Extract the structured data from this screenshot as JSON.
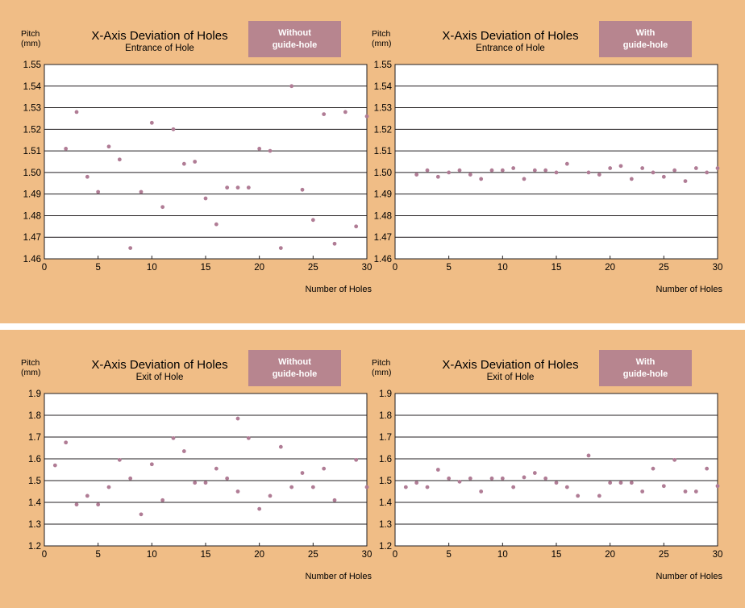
{
  "colors": {
    "panel_bg": "#f0bd86",
    "plot_bg": "#ffffff",
    "grid": "#231f20",
    "marker": "#b07c95",
    "badge_bg": "#b7858f",
    "badge_text": "#ffffff"
  },
  "chart_data": [
    {
      "type": "scatter",
      "title": "X-Axis Deviation of Holes",
      "subtitle": "Entrance of Hole",
      "badge": [
        "Without",
        "guide-hole"
      ],
      "ylabel": [
        "Pitch",
        "(mm)"
      ],
      "xlabel": "Number of Holes",
      "xlim": [
        0,
        30
      ],
      "ylim": [
        1.46,
        1.55
      ],
      "xticks": [
        "0",
        "5",
        "10",
        "15",
        "20",
        "25",
        "30"
      ],
      "yticks": [
        "1.55",
        "1.54",
        "1.53",
        "1.52",
        "1.51",
        "1.50",
        "1.49",
        "1.48",
        "1.47",
        "1.46"
      ],
      "grid": "horizontal",
      "x": [
        2,
        3,
        4,
        5,
        6,
        7,
        8,
        9,
        10,
        11,
        12,
        13,
        14,
        15,
        16,
        17,
        18,
        19,
        20,
        21,
        22,
        23,
        24,
        25,
        26,
        27,
        28,
        29,
        30
      ],
      "y": [
        1.511,
        1.528,
        1.498,
        1.491,
        1.512,
        1.506,
        1.465,
        1.491,
        1.523,
        1.484,
        1.52,
        1.504,
        1.505,
        1.488,
        1.476,
        1.493,
        1.493,
        1.493,
        1.511,
        1.51,
        1.465,
        1.54,
        1.492,
        1.478,
        1.527,
        1.467,
        1.528,
        1.475,
        1.526
      ]
    },
    {
      "type": "scatter",
      "title": "X-Axis Deviation of Holes",
      "subtitle": "Entrance of Hole",
      "badge": [
        "With",
        "guide-hole"
      ],
      "ylabel": [
        "Pitch",
        "(mm)"
      ],
      "xlabel": "Number of Holes",
      "xlim": [
        0,
        30
      ],
      "ylim": [
        1.46,
        1.55
      ],
      "xticks": [
        "0",
        "5",
        "10",
        "15",
        "20",
        "25",
        "30"
      ],
      "yticks": [
        "1.55",
        "1.54",
        "1.53",
        "1.52",
        "1.51",
        "1.50",
        "1.49",
        "1.48",
        "1.47",
        "1.46"
      ],
      "grid": "horizontal",
      "x": [
        2,
        3,
        4,
        5,
        6,
        7,
        8,
        9,
        10,
        11,
        12,
        13,
        14,
        15,
        16,
        18,
        19,
        20,
        21,
        22,
        23,
        24,
        25,
        26,
        27,
        28,
        29,
        30
      ],
      "y": [
        1.499,
        1.501,
        1.498,
        1.5,
        1.501,
        1.499,
        1.497,
        1.501,
        1.501,
        1.502,
        1.497,
        1.501,
        1.501,
        1.5,
        1.504,
        1.5,
        1.499,
        1.502,
        1.503,
        1.497,
        1.502,
        1.5,
        1.498,
        1.501,
        1.496,
        1.502,
        1.5,
        1.502
      ]
    },
    {
      "type": "scatter",
      "title": "X-Axis Deviation of Holes",
      "subtitle": "Exit of Hole",
      "badge": [
        "Without",
        "guide-hole"
      ],
      "ylabel": [
        "Pitch",
        "(mm)"
      ],
      "xlabel": "Number of Holes",
      "xlim": [
        0,
        30
      ],
      "ylim": [
        1.2,
        1.9
      ],
      "xticks": [
        "0",
        "5",
        "10",
        "15",
        "20",
        "25",
        "30"
      ],
      "yticks": [
        "1.9",
        "1.8",
        "1.7",
        "1.6",
        "1.5",
        "1.4",
        "1.3",
        "1.2"
      ],
      "grid": "horizontal",
      "x": [
        1,
        2,
        3,
        4,
        5,
        6,
        7,
        8,
        9,
        10,
        11,
        12,
        13,
        14,
        15,
        16,
        17,
        18,
        18,
        19,
        20,
        21,
        22,
        23,
        24,
        25,
        26,
        27,
        29,
        30
      ],
      "y": [
        1.57,
        1.675,
        1.39,
        1.43,
        1.39,
        1.47,
        1.595,
        1.51,
        1.345,
        1.575,
        1.41,
        1.695,
        1.635,
        1.49,
        1.49,
        1.555,
        1.51,
        1.785,
        1.45,
        1.695,
        1.37,
        1.43,
        1.655,
        1.47,
        1.535,
        1.47,
        1.555,
        1.41,
        1.595,
        1.47
      ]
    },
    {
      "type": "scatter",
      "title": "X-Axis Deviation of Holes",
      "subtitle": "Exit of Hole",
      "badge": [
        "With",
        "guide-hole"
      ],
      "ylabel": [
        "Pitch",
        "(mm)"
      ],
      "xlabel": "Number of Holes",
      "xlim": [
        0,
        30
      ],
      "ylim": [
        1.2,
        1.9
      ],
      "xticks": [
        "0",
        "5",
        "10",
        "15",
        "20",
        "25",
        "30"
      ],
      "yticks": [
        "1.9",
        "1.8",
        "1.7",
        "1.6",
        "1.5",
        "1.4",
        "1.3",
        "1.2"
      ],
      "grid": "horizontal",
      "x": [
        1,
        2,
        3,
        4,
        5,
        6,
        7,
        8,
        9,
        10,
        11,
        12,
        13,
        14,
        15,
        16,
        17,
        18,
        19,
        20,
        21,
        22,
        23,
        24,
        25,
        26,
        27,
        28,
        29,
        30
      ],
      "y": [
        1.47,
        1.49,
        1.47,
        1.55,
        1.51,
        1.495,
        1.51,
        1.45,
        1.51,
        1.51,
        1.47,
        1.515,
        1.535,
        1.51,
        1.49,
        1.47,
        1.43,
        1.615,
        1.43,
        1.49,
        1.49,
        1.49,
        1.45,
        1.555,
        1.475,
        1.595,
        1.45,
        1.45,
        1.555,
        1.475
      ]
    }
  ]
}
